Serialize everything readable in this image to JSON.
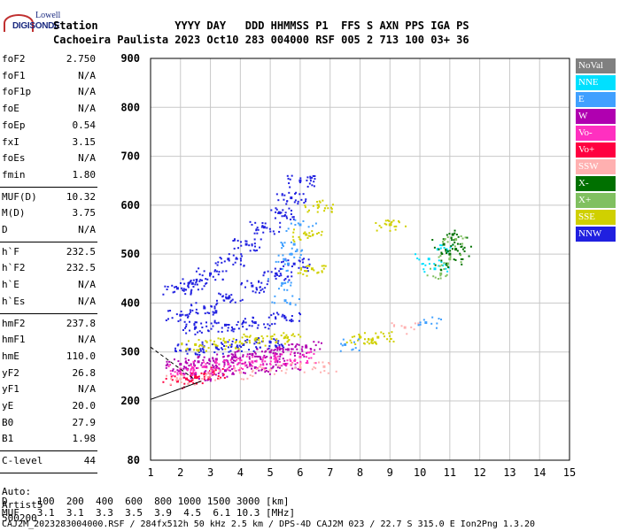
{
  "header": {
    "logo_top": "Lowell",
    "logo_bottom": "DIGISONDE",
    "labels": "Station            YYYY DAY   DDD HHMMSS P1  FFS S AXN PPS IGA PS",
    "values": "Cachoeira Paulista 2023 Oct10 283 004000 RSF 005 2 713 100 03+ 36"
  },
  "params_group1": [
    {
      "name": "foF2",
      "value": "2.750"
    },
    {
      "name": "foF1",
      "value": "N/A"
    },
    {
      "name": "foF1p",
      "value": "N/A"
    },
    {
      "name": "foE",
      "value": "N/A"
    },
    {
      "name": "foEp",
      "value": "0.54"
    },
    {
      "name": "fxI",
      "value": "3.15"
    },
    {
      "name": "foEs",
      "value": "N/A"
    },
    {
      "name": "fmin",
      "value": "1.80"
    }
  ],
  "params_group2": [
    {
      "name": "MUF(D)",
      "value": "10.32"
    },
    {
      "name": "M(D)",
      "value": "3.75"
    },
    {
      "name": "D",
      "value": "N/A"
    }
  ],
  "params_group3": [
    {
      "name": "h`F",
      "value": "232.5"
    },
    {
      "name": "h`F2",
      "value": "232.5"
    },
    {
      "name": "h`E",
      "value": "N/A"
    },
    {
      "name": "h`Es",
      "value": "N/A"
    }
  ],
  "params_group4": [
    {
      "name": "hmF2",
      "value": "237.8"
    },
    {
      "name": "hmF1",
      "value": "N/A"
    },
    {
      "name": "hmE",
      "value": "110.0"
    },
    {
      "name": "yF2",
      "value": "26.8"
    },
    {
      "name": "yF1",
      "value": "N/A"
    },
    {
      "name": "yE",
      "value": "20.0"
    },
    {
      "name": "B0",
      "value": "27.9"
    },
    {
      "name": "B1",
      "value": "1.98"
    }
  ],
  "params_group5": [
    {
      "name": "C-level",
      "value": "44"
    }
  ],
  "auto": {
    "line1": "Auto:",
    "line2": "Artist5",
    "line3": "500200"
  },
  "legend": [
    {
      "label": "NoVal",
      "color": "#808080"
    },
    {
      "label": "NNE",
      "color": "#00e0ff"
    },
    {
      "label": "E",
      "color": "#40a0ff"
    },
    {
      "label": "W",
      "color": "#b000b0"
    },
    {
      "label": "Vo-",
      "color": "#ff30c0"
    },
    {
      "label": "Vo+",
      "color": "#ff0040"
    },
    {
      "label": "SSW",
      "color": "#ffb0b0"
    },
    {
      "label": "X-",
      "color": "#007000"
    },
    {
      "label": "X+",
      "color": "#80c060"
    },
    {
      "label": "SSE",
      "color": "#d0d000"
    },
    {
      "label": "NNW",
      "color": "#2020e0"
    }
  ],
  "footer": {
    "d_line": "D     100  200  400  600  800 1000 1500 3000 [km]",
    "muf_line": "MUF   3.1  3.1  3.3  3.5  3.9  4.5  6.1 10.3 [MHz]",
    "file_line": "CAJ2M_2023283004000.RSF / 284fx512h 50 kHz 2.5 km / DPS-4D CAJ2M 023 / 22.7 S 315.0 E Ion2Png 1.3.20"
  },
  "chart_data": {
    "type": "scatter",
    "x_ticks": [
      1,
      2,
      3,
      4,
      5,
      6,
      7,
      8,
      9,
      10,
      11,
      12,
      13,
      14,
      15
    ],
    "y_ticks": [
      80,
      200,
      300,
      400,
      500,
      600,
      700,
      800,
      900
    ],
    "xlim": [
      1,
      15
    ],
    "ylim": [
      80,
      900
    ],
    "grid": true,
    "legend_placement": "right",
    "series": [
      {
        "name": "NNW",
        "color": "#2020e0",
        "x": [
          1.9,
          2.4,
          3.0,
          3.6,
          4.2,
          4.8,
          5.3,
          5.7,
          6.0,
          2.0,
          2.8,
          3.6,
          4.4,
          5.2,
          5.8,
          2.5,
          3.5,
          4.5,
          5.5,
          2.3,
          3.2,
          4.1,
          5.0
        ],
        "y": [
          430,
          440,
          460,
          490,
          520,
          555,
          585,
          615,
          650,
          375,
          390,
          410,
          435,
          460,
          480,
          350,
          355,
          360,
          370,
          305,
          310,
          315,
          320
        ]
      },
      {
        "name": "W",
        "color": "#b000b0",
        "x": [
          2.0,
          2.6,
          3.2,
          3.8,
          4.4,
          5.0,
          5.6,
          6.2,
          2.5,
          3.5,
          4.5,
          5.5
        ],
        "y": [
          275,
          280,
          285,
          290,
          295,
          300,
          305,
          310,
          255,
          262,
          268,
          275
        ]
      },
      {
        "name": "Vo+",
        "color": "#ff0040",
        "x": [
          1.9,
          2.2,
          2.5,
          2.8,
          3.1
        ],
        "y": [
          240,
          245,
          250,
          255,
          260
        ]
      },
      {
        "name": "Vo-",
        "color": "#ff30c0",
        "x": [
          2.0,
          2.8,
          3.6,
          4.4,
          5.2,
          6.0
        ],
        "y": [
          265,
          270,
          275,
          280,
          285,
          290
        ]
      },
      {
        "name": "SSW",
        "color": "#ffb0b0",
        "x": [
          2.0,
          3.0,
          4.0,
          5.0,
          6.0,
          6.8,
          9.5
        ],
        "y": [
          245,
          252,
          258,
          263,
          268,
          270,
          350
        ]
      },
      {
        "name": "SSE",
        "color": "#d0d000",
        "x": [
          2.5,
          3.5,
          4.5,
          5.5,
          6.2,
          6.4,
          6.6,
          8.0,
          8.6,
          9.0
        ],
        "y": [
          315,
          320,
          325,
          330,
          540,
          470,
          600,
          330,
          330,
          560
        ]
      },
      {
        "name": "E",
        "color": "#40a0ff",
        "x": [
          5.4,
          5.6,
          5.8,
          6.0,
          5.5,
          5.7,
          7.5,
          10.2
        ],
        "y": [
          440,
          480,
          520,
          560,
          405,
          500,
          315,
          360
        ]
      },
      {
        "name": "NNE",
        "color": "#00e0ff",
        "x": [
          10.3,
          10.5,
          10.6
        ],
        "y": [
          490,
          470,
          510
        ]
      },
      {
        "name": "X-",
        "color": "#007000",
        "x": [
          10.8,
          11.0,
          11.1,
          10.9,
          11.2
        ],
        "y": [
          520,
          500,
          540,
          480,
          510
        ]
      },
      {
        "name": "X+",
        "color": "#80c060",
        "x": [
          11.0,
          11.2,
          10.7
        ],
        "y": [
          490,
          530,
          460
        ]
      }
    ]
  }
}
